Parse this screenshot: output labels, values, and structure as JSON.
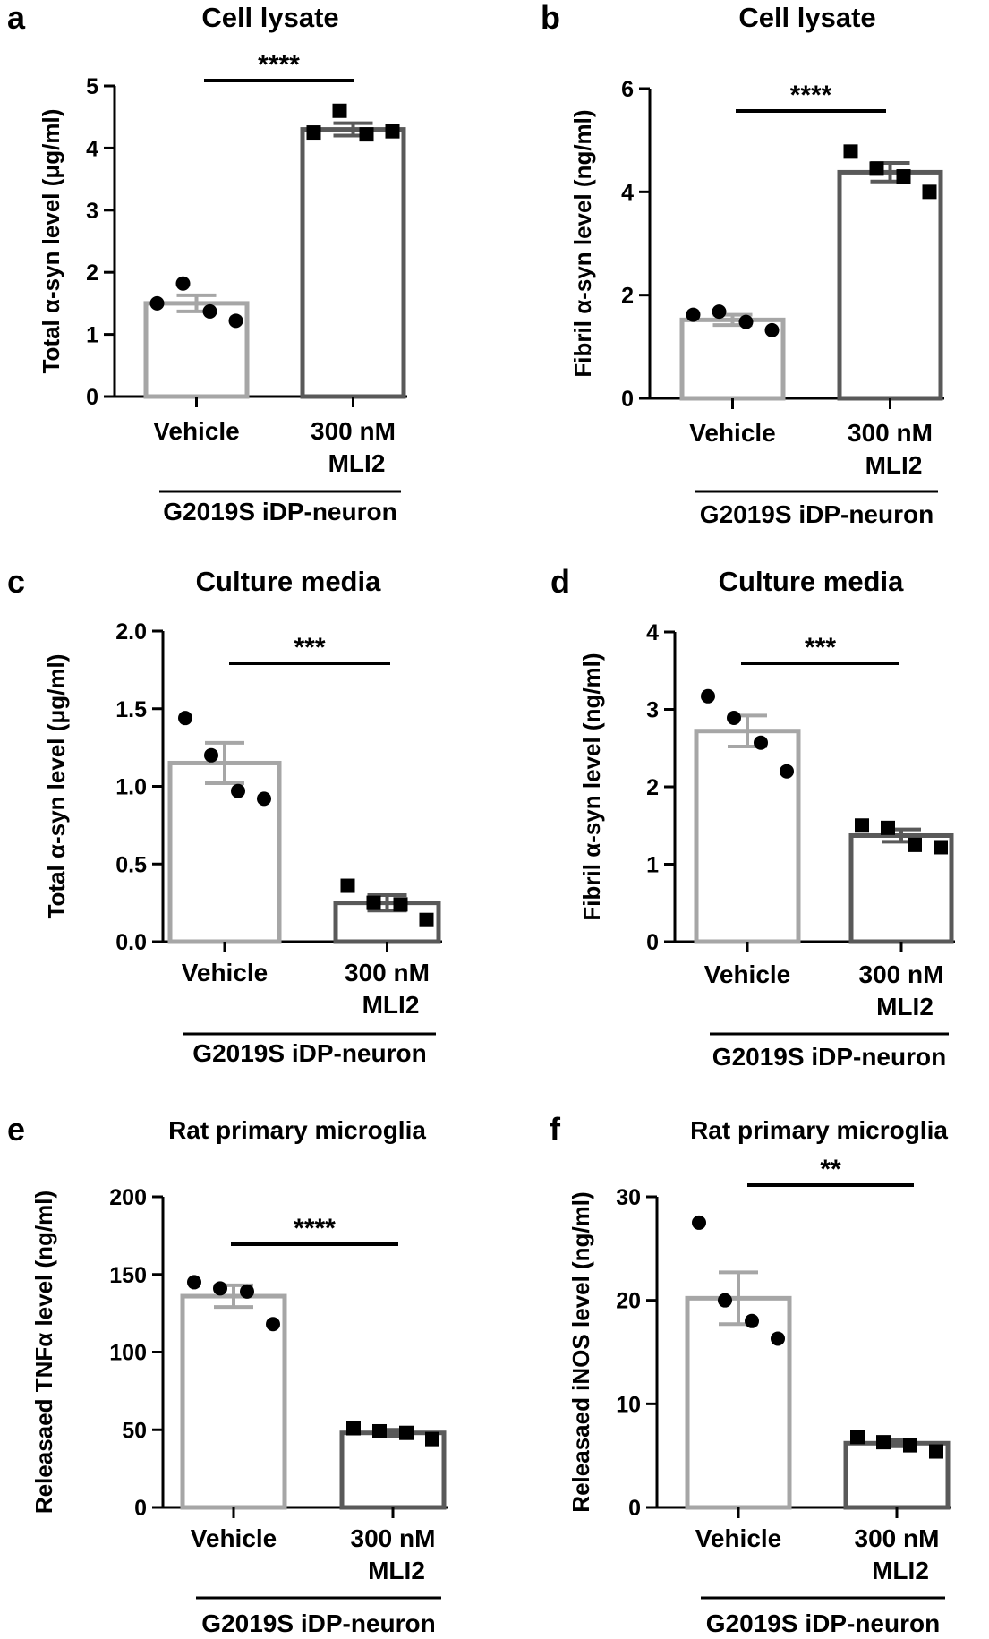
{
  "figure": {
    "group_label": "G2019S iDP-neuron",
    "colors": {
      "vehicle_bar": "#a6a6a6",
      "mli2_bar": "#595959",
      "text": "#000000",
      "point": "#000000"
    }
  },
  "chart_data": [
    {
      "type": "bar",
      "panel": "a",
      "title": "Cell lysate",
      "ylabel": "Total α-syn level (μg/ml)",
      "xlabel": "",
      "categories": [
        "Vehicle",
        "300 nM MLI2"
      ],
      "category_lines": [
        [
          "Vehicle"
        ],
        [
          "300 nM",
          "MLI2"
        ]
      ],
      "group_label": "G2019S iDP-neuron",
      "ylim": [
        0,
        5
      ],
      "ticks": [
        0,
        1,
        2,
        3,
        4,
        5
      ],
      "tick_labels": [
        "0",
        "1",
        "2",
        "3",
        "4",
        "5"
      ],
      "series": [
        {
          "name": "mean",
          "values": [
            1.5,
            4.3
          ]
        }
      ],
      "error": [
        0.13,
        0.1
      ],
      "points": [
        [
          1.5,
          1.82,
          1.37,
          1.22
        ],
        [
          4.25,
          4.6,
          4.22,
          4.27
        ]
      ],
      "markers": [
        "circle",
        "square"
      ],
      "significance": "****"
    },
    {
      "type": "bar",
      "panel": "b",
      "title": "Cell lysate",
      "ylabel": "Fibril α-syn level (ng/ml)",
      "xlabel": "",
      "categories": [
        "Vehicle",
        "300 nM MLI2"
      ],
      "category_lines": [
        [
          "Vehicle"
        ],
        [
          "300 nM",
          "MLI2"
        ]
      ],
      "group_label": "G2019S iDP-neuron",
      "ylim": [
        0,
        6
      ],
      "ticks": [
        0,
        2,
        4,
        6
      ],
      "tick_labels": [
        "0",
        "2",
        "4",
        "6"
      ],
      "series": [
        {
          "name": "mean",
          "values": [
            1.52,
            4.38
          ]
        }
      ],
      "error": [
        0.1,
        0.18
      ],
      "points": [
        [
          1.62,
          1.68,
          1.48,
          1.32
        ],
        [
          4.78,
          4.45,
          4.3,
          4.0
        ]
      ],
      "markers": [
        "circle",
        "square"
      ],
      "significance": "****"
    },
    {
      "type": "bar",
      "panel": "c",
      "title": "Culture media",
      "ylabel": "Total α-syn level (μg/ml)",
      "xlabel": "",
      "categories": [
        "Vehicle",
        "300 nM MLI2"
      ],
      "category_lines": [
        [
          "Vehicle"
        ],
        [
          "300 nM",
          "MLI2"
        ]
      ],
      "group_label": "G2019S iDP-neuron",
      "ylim": [
        0,
        2.0
      ],
      "ticks": [
        0,
        0.5,
        1.0,
        1.5,
        2.0
      ],
      "tick_labels": [
        "0.0",
        "0.5",
        "1.0",
        "1.5",
        "2.0"
      ],
      "series": [
        {
          "name": "mean",
          "values": [
            1.15,
            0.25
          ]
        }
      ],
      "error": [
        0.13,
        0.05
      ],
      "points": [
        [
          1.44,
          1.2,
          0.97,
          0.92
        ],
        [
          0.36,
          0.25,
          0.24,
          0.14
        ]
      ],
      "markers": [
        "circle",
        "square"
      ],
      "significance": "***"
    },
    {
      "type": "bar",
      "panel": "d",
      "title": "Culture media",
      "ylabel": "Fibril α-syn level (ng/ml)",
      "xlabel": "",
      "categories": [
        "Vehicle",
        "300 nM MLI2"
      ],
      "category_lines": [
        [
          "Vehicle"
        ],
        [
          "300 nM",
          "MLI2"
        ]
      ],
      "group_label": "G2019S iDP-neuron",
      "ylim": [
        0,
        4
      ],
      "ticks": [
        0,
        1,
        2,
        3,
        4
      ],
      "tick_labels": [
        "0",
        "1",
        "2",
        "3",
        "4"
      ],
      "series": [
        {
          "name": "mean",
          "values": [
            2.72,
            1.37
          ]
        }
      ],
      "error": [
        0.2,
        0.08
      ],
      "points": [
        [
          3.17,
          2.89,
          2.57,
          2.2
        ],
        [
          1.5,
          1.47,
          1.25,
          1.22
        ]
      ],
      "markers": [
        "circle",
        "square"
      ],
      "significance": "***"
    },
    {
      "type": "bar",
      "panel": "e",
      "title": "Rat primary microglia",
      "ylabel": "Releasaed TNFα level (ng/ml)",
      "xlabel": "",
      "categories": [
        "Vehicle",
        "300 nM MLI2"
      ],
      "category_lines": [
        [
          "Vehicle"
        ],
        [
          "300 nM",
          "MLI2"
        ]
      ],
      "group_label": "G2019S iDP-neuron",
      "ylim": [
        0,
        200
      ],
      "ticks": [
        0,
        50,
        100,
        150,
        200
      ],
      "tick_labels": [
        "0",
        "50",
        "100",
        "150",
        "200"
      ],
      "series": [
        {
          "name": "mean",
          "values": [
            136,
            48
          ]
        }
      ],
      "error": [
        7,
        2
      ],
      "points": [
        [
          145,
          141,
          139,
          118
        ],
        [
          51,
          49,
          48,
          44
        ]
      ],
      "markers": [
        "circle",
        "square"
      ],
      "significance": "****"
    },
    {
      "type": "bar",
      "panel": "f",
      "title": "Rat primary microglia",
      "ylabel": "Releasaed iNOS level (ng/ml)",
      "xlabel": "",
      "categories": [
        "Vehicle",
        "300 nM MLI2"
      ],
      "category_lines": [
        [
          "Vehicle"
        ],
        [
          "300 nM",
          "MLI2"
        ]
      ],
      "group_label": "G2019S iDP-neuron",
      "ylim": [
        0,
        30
      ],
      "ticks": [
        0,
        10,
        20,
        30
      ],
      "tick_labels": [
        "0",
        "10",
        "20",
        "30"
      ],
      "series": [
        {
          "name": "mean",
          "values": [
            20.2,
            6.2
          ]
        }
      ],
      "error": [
        2.5,
        0.3
      ],
      "points": [
        [
          27.5,
          20.0,
          18.0,
          16.3
        ],
        [
          6.8,
          6.3,
          6.0,
          5.4
        ]
      ],
      "markers": [
        "circle",
        "square"
      ],
      "significance": "**"
    }
  ]
}
